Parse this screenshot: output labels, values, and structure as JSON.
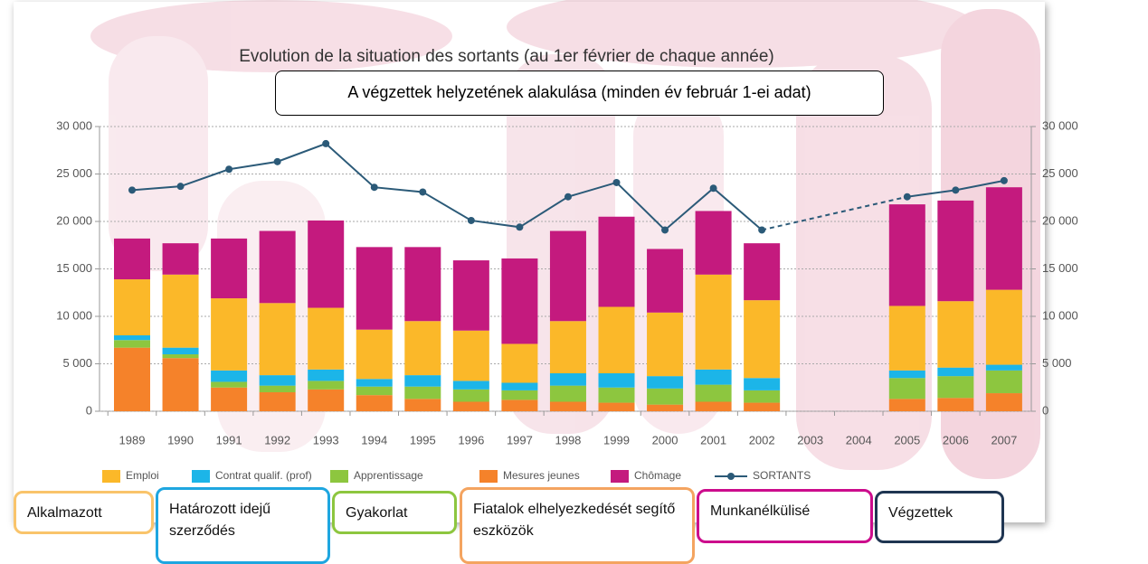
{
  "chart_data": {
    "type": "bar",
    "title": "Evolution de la situation des sortants (au 1er février de chaque année)",
    "annotation": "A végzettek helyzetének alakulása (minden év február 1-ei adat)",
    "stacked": true,
    "categories": [
      "1989",
      "1990",
      "1991",
      "1992",
      "1993",
      "1994",
      "1995",
      "1996",
      "1997",
      "1998",
      "1999",
      "2000",
      "2001",
      "2002",
      "2003",
      "2004",
      "2005",
      "2006",
      "2007"
    ],
    "series": [
      {
        "name": "Emploi",
        "color": "#fbb829",
        "values": [
          5900,
          7700,
          7600,
          7600,
          6500,
          5200,
          5700,
          5300,
          4100,
          5500,
          7000,
          6700,
          10000,
          8200,
          null,
          null,
          6800,
          7000,
          7900
        ]
      },
      {
        "name": "Contrat qualif. (prof)",
        "color": "#1cb5e8",
        "values": [
          500,
          700,
          1200,
          1100,
          1200,
          800,
          1200,
          900,
          800,
          1300,
          1500,
          1300,
          1600,
          1300,
          null,
          null,
          800,
          900,
          600
        ]
      },
      {
        "name": "Apprentissage",
        "color": "#8dc63f",
        "values": [
          800,
          400,
          600,
          700,
          900,
          900,
          1300,
          1300,
          1000,
          1700,
          1600,
          1700,
          1800,
          1300,
          null,
          null,
          2200,
          2300,
          2400
        ]
      },
      {
        "name": "Mesures jeunes",
        "color": "#f5822a",
        "values": [
          6700,
          5600,
          2500,
          2000,
          2300,
          1700,
          1300,
          1000,
          1200,
          1000,
          900,
          700,
          1000,
          900,
          null,
          null,
          1300,
          1400,
          1900
        ]
      },
      {
        "name": "Chômage",
        "color": "#c41a7e",
        "values": [
          4300,
          3300,
          6300,
          7600,
          9200,
          8700,
          7800,
          7400,
          9000,
          9500,
          9500,
          6700,
          6700,
          6000,
          null,
          null,
          10700,
          10600,
          10800
        ]
      },
      {
        "name": "SORTANTS",
        "type": "line",
        "color": "#2b5a78",
        "values": [
          23300,
          23700,
          25500,
          26300,
          28200,
          23600,
          23100,
          20100,
          19400,
          22600,
          24100,
          19100,
          23500,
          19100,
          null,
          null,
          22600,
          23300,
          24300
        ]
      }
    ],
    "ylim": [
      0,
      30000
    ],
    "yticks": [
      {
        "value": 0,
        "label": "0"
      },
      {
        "value": 5000,
        "label": "5 000"
      },
      {
        "value": 10000,
        "label": "10 000"
      },
      {
        "value": 15000,
        "label": "15 000"
      },
      {
        "value": 20000,
        "label": "20 000"
      },
      {
        "value": 25000,
        "label": "25 000"
      },
      {
        "value": 30000,
        "label": "30 000"
      }
    ],
    "y2lim": [
      0,
      30000
    ],
    "y2ticks": [
      {
        "value": 0,
        "label": "0"
      },
      {
        "value": 5000,
        "label": "5 000"
      },
      {
        "value": 10000,
        "label": "10 000"
      },
      {
        "value": 15000,
        "label": "15 000"
      },
      {
        "value": 20000,
        "label": "20 000"
      },
      {
        "value": 25000,
        "label": "25 000"
      },
      {
        "value": 30000,
        "label": "30 000"
      }
    ],
    "grid": true,
    "legend": "bottom",
    "translations": [
      {
        "text": "Alkalmazott",
        "color": "#f9c46b"
      },
      {
        "text": "Határozott idejű szerződés",
        "color": "#1ea6e0"
      },
      {
        "text": "Gyakorlat",
        "color": "#8dc63f"
      },
      {
        "text": "Fiatalok elhelyezkedését segítő eszközök",
        "color": "#f4a460"
      },
      {
        "text": "Munkanélkülisé",
        "color": "#cc0c8c"
      },
      {
        "text": "Végzettek",
        "color": "#1f3552"
      }
    ]
  }
}
